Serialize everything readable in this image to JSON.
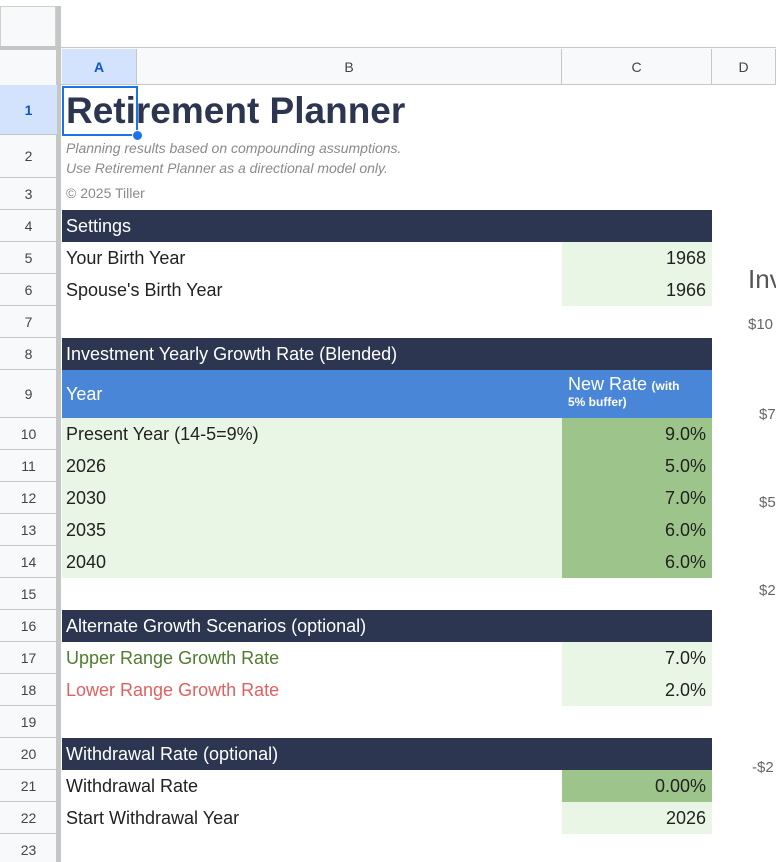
{
  "columns": [
    "A",
    "B",
    "C",
    "D"
  ],
  "rows": [
    1,
    2,
    3,
    4,
    5,
    6,
    7,
    8,
    9,
    10,
    11,
    12,
    13,
    14,
    15,
    16,
    17,
    18,
    19,
    20,
    21,
    22,
    23
  ],
  "title": "Retirement Planner",
  "notes": [
    "Planning results based on compounding assumptions.",
    "Use Retirement Planner as a directional model only."
  ],
  "copyright": "© 2025 Tiller",
  "settings": {
    "header": "Settings",
    "rows": [
      [
        "Your Birth Year",
        "1968"
      ],
      [
        "Spouse's Birth Year",
        "1966"
      ]
    ]
  },
  "growth": {
    "header": "Investment Yearly Growth Rate (Blended)",
    "col_year": "Year",
    "col_rate": "New Rate",
    "col_rate_note": "(with 5% buffer)",
    "rows": [
      [
        "Present Year (14-5=9%)",
        "9.0%"
      ],
      [
        "2026",
        "5.0%"
      ],
      [
        "2030",
        "7.0%"
      ],
      [
        "2035",
        "6.0%"
      ],
      [
        "2040",
        "6.0%"
      ]
    ]
  },
  "scenarios": {
    "header": "Alternate Growth Scenarios (optional)",
    "rows": [
      [
        "Upper Range Growth Rate",
        "7.0%"
      ],
      [
        "Lower Range Growth Rate",
        "2.0%"
      ]
    ]
  },
  "withdrawal": {
    "header": "Withdrawal Rate (optional)",
    "rows": [
      [
        "Withdrawal Rate",
        "0.00%"
      ],
      [
        "Start Withdrawal Year",
        "2026"
      ]
    ]
  },
  "chart_fragment": {
    "title": "Inv",
    "labels": [
      "$10",
      "$7",
      "$5",
      "$2",
      "-$2"
    ]
  }
}
